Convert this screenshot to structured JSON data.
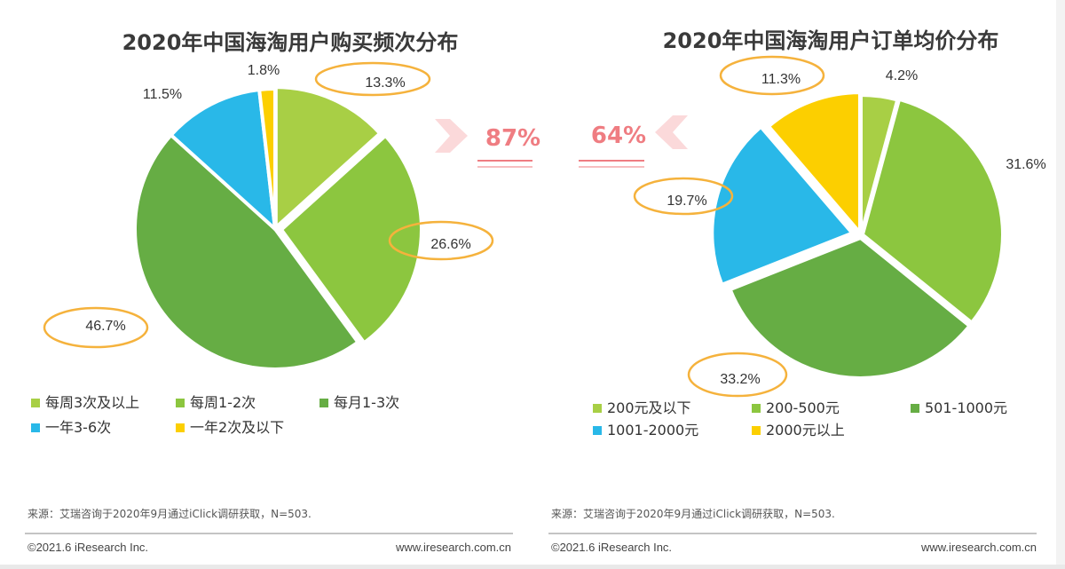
{
  "chart_data": [
    {
      "type": "pie",
      "title": "2020年中国海淘用户购买频次分布",
      "categories": [
        "每周3次及以上",
        "每周1-2次",
        "每月1-3次",
        "一年3-6次",
        "一年2次及以下"
      ],
      "values": [
        13.3,
        26.6,
        46.7,
        11.5,
        1.8
      ],
      "labels": [
        "13.3%",
        "26.6%",
        "46.7%",
        "11.5%",
        "1.8%"
      ],
      "colors": [
        "#a8cf45",
        "#8cc63f",
        "#66ad44",
        "#29b8e8",
        "#fccf00"
      ],
      "highlighted": [
        true,
        true,
        true,
        false,
        false
      ],
      "callout": {
        "text": "87%",
        "direction": "right"
      },
      "legend": "bottom"
    },
    {
      "type": "pie",
      "title": "2020年中国海淘用户订单均价分布",
      "categories": [
        "200元及以下",
        "200-500元",
        "501-1000元",
        "1001-2000元",
        "2000元以上"
      ],
      "values": [
        4.2,
        31.6,
        33.2,
        19.7,
        11.3
      ],
      "labels": [
        "4.2%",
        "31.6%",
        "33.2%",
        "19.7%",
        "11.3%"
      ],
      "colors": [
        "#a8cf45",
        "#8cc63f",
        "#66ad44",
        "#29b8e8",
        "#fccf00"
      ],
      "highlighted": [
        false,
        false,
        true,
        true,
        true
      ],
      "callout": {
        "text": "64%",
        "direction": "left"
      },
      "legend": "bottom"
    }
  ],
  "source": "来源：艾瑞咨询于2020年9月通过iClick调研获取，N=503.",
  "copyright": "©2021.6 iResearch Inc.",
  "website": "www.iresearch.com.cn"
}
